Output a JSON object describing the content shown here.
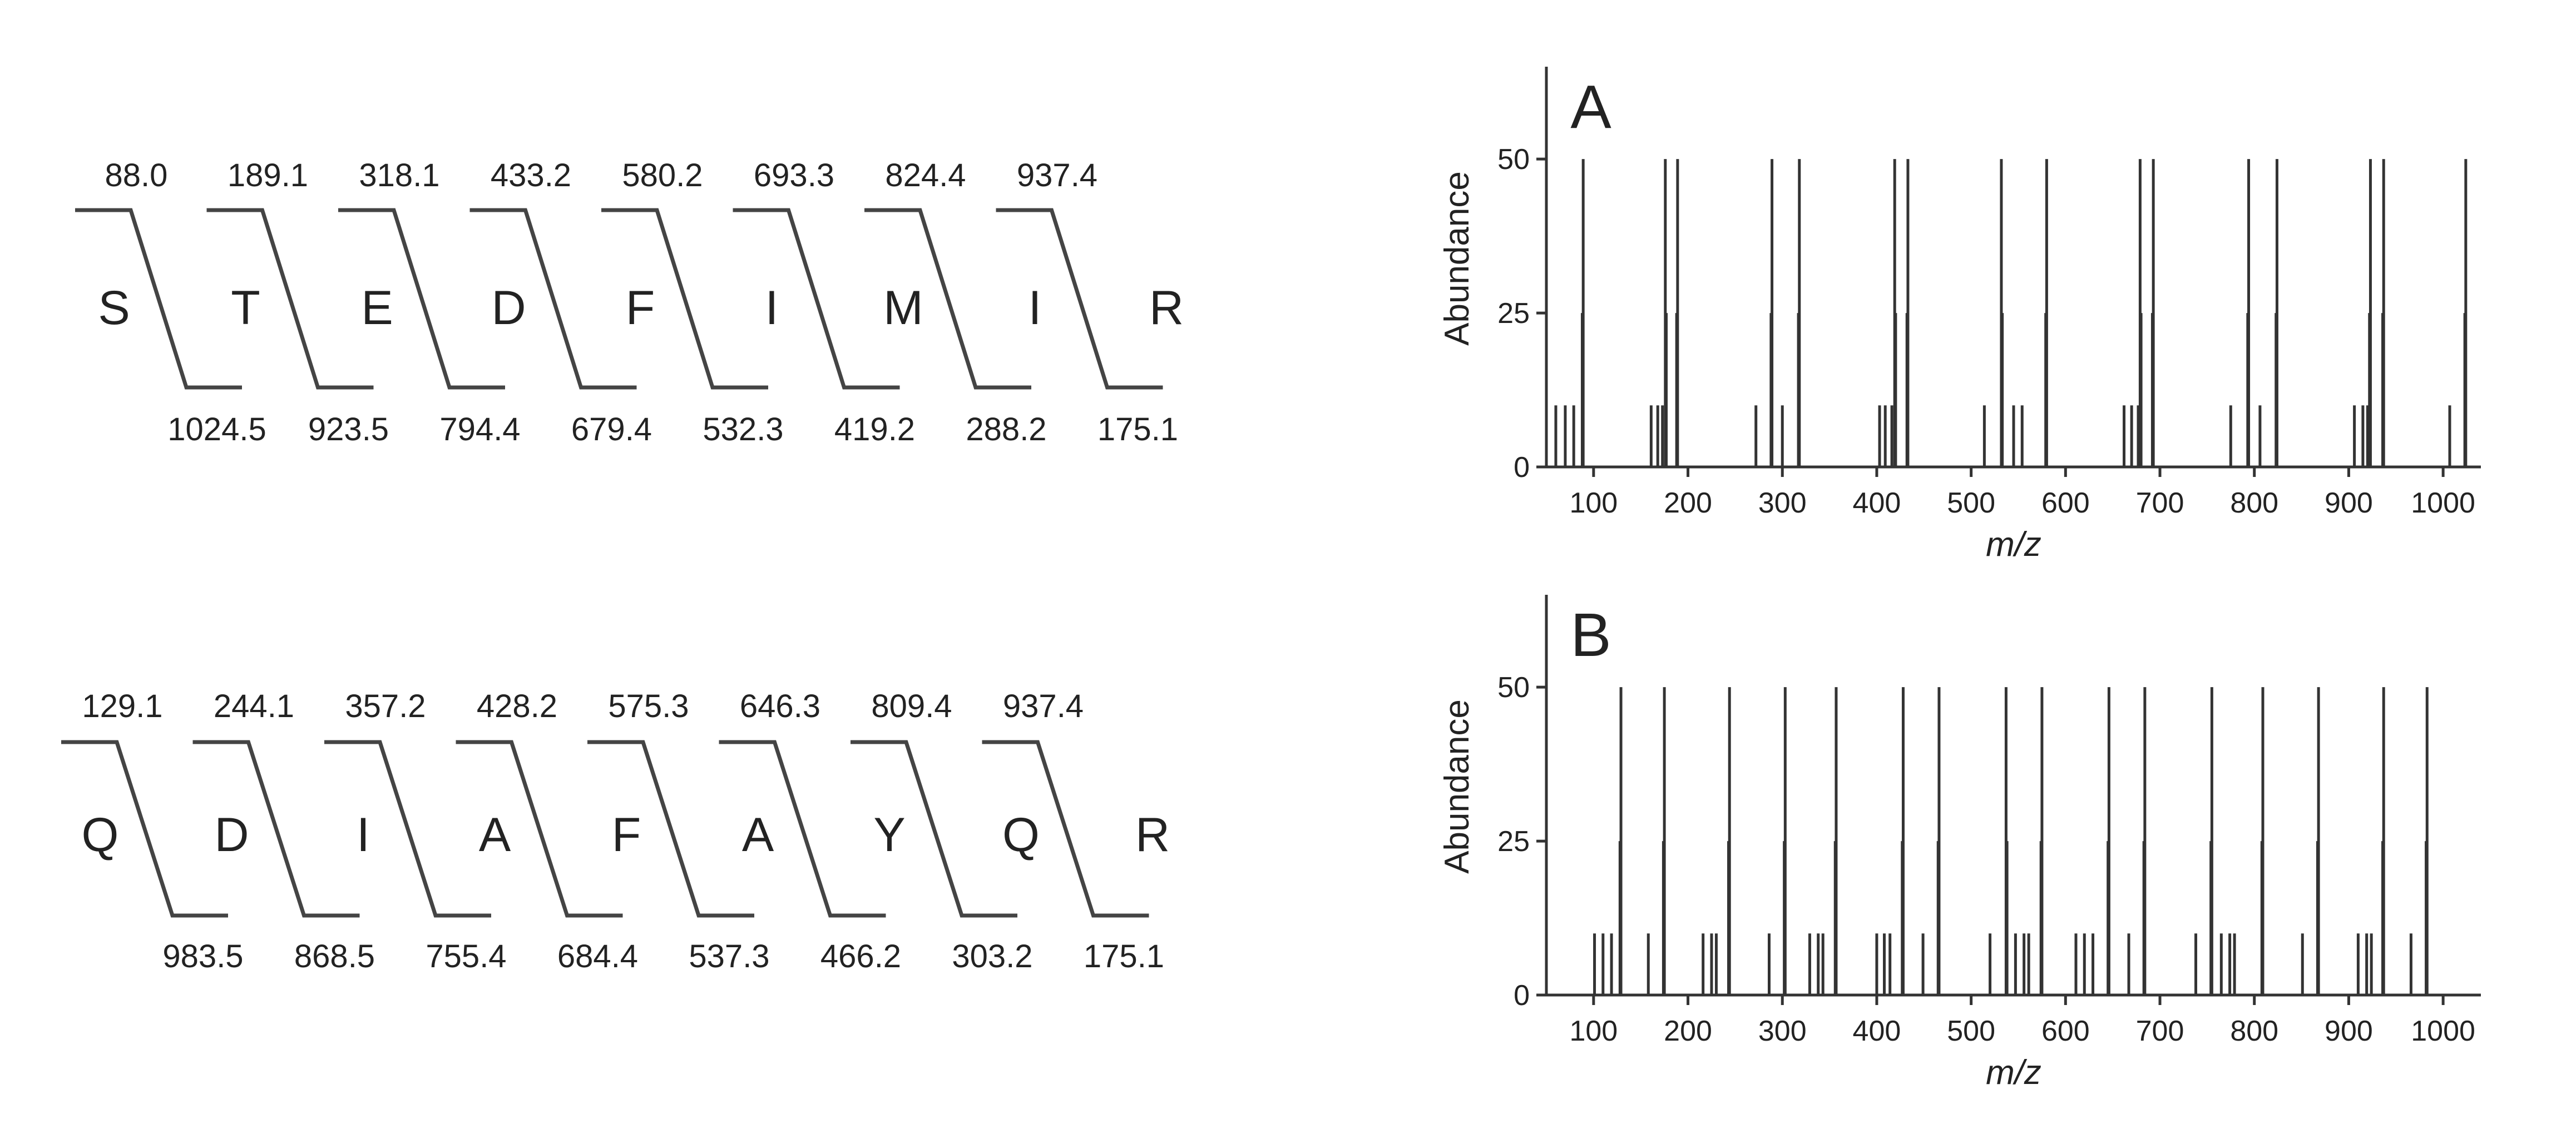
{
  "peptides": [
    {
      "residues": [
        "S",
        "T",
        "E",
        "D",
        "F",
        "I",
        "M",
        "I",
        "R"
      ],
      "top_masses": [
        "88.0",
        "189.1",
        "318.1",
        "433.2",
        "580.2",
        "693.3",
        "824.4",
        "937.4"
      ],
      "bottom_masses": [
        "1024.5",
        "923.5",
        "794.4",
        "679.4",
        "532.3",
        "419.2",
        "288.2",
        "175.1"
      ]
    },
    {
      "residues": [
        "Q",
        "D",
        "I",
        "A",
        "F",
        "A",
        "Y",
        "Q",
        "R"
      ],
      "top_masses": [
        "129.1",
        "244.1",
        "357.2",
        "428.2",
        "575.3",
        "646.3",
        "809.4",
        "937.4"
      ],
      "bottom_masses": [
        "983.5",
        "868.5",
        "755.4",
        "684.4",
        "537.3",
        "466.2",
        "303.2",
        "175.1"
      ]
    }
  ],
  "chart_data": [
    {
      "type": "bar",
      "panel_label": "A",
      "xlabel": "m/z",
      "ylabel": "Abundance",
      "xlim": [
        50,
        1040
      ],
      "ylim": [
        0,
        65
      ],
      "xticks": [
        100,
        200,
        300,
        400,
        500,
        600,
        700,
        800,
        900,
        1000
      ],
      "yticks": [
        0,
        25,
        50
      ],
      "peaks": [
        {
          "mz": 60,
          "abundance": 10
        },
        {
          "mz": 70,
          "abundance": 10
        },
        {
          "mz": 79,
          "abundance": 10
        },
        {
          "mz": 88,
          "abundance": 25
        },
        {
          "mz": 89,
          "abundance": 50
        },
        {
          "mz": 161,
          "abundance": 10
        },
        {
          "mz": 168,
          "abundance": 10
        },
        {
          "mz": 173,
          "abundance": 10
        },
        {
          "mz": 176,
          "abundance": 50
        },
        {
          "mz": 177,
          "abundance": 25
        },
        {
          "mz": 188,
          "abundance": 25
        },
        {
          "mz": 189,
          "abundance": 50
        },
        {
          "mz": 272,
          "abundance": 10
        },
        {
          "mz": 288,
          "abundance": 25
        },
        {
          "mz": 289,
          "abundance": 50
        },
        {
          "mz": 300,
          "abundance": 10
        },
        {
          "mz": 317,
          "abundance": 25
        },
        {
          "mz": 318,
          "abundance": 50
        },
        {
          "mz": 403,
          "abundance": 10
        },
        {
          "mz": 409,
          "abundance": 10
        },
        {
          "mz": 416,
          "abundance": 10
        },
        {
          "mz": 419,
          "abundance": 50
        },
        {
          "mz": 420,
          "abundance": 25
        },
        {
          "mz": 432,
          "abundance": 25
        },
        {
          "mz": 433,
          "abundance": 50
        },
        {
          "mz": 514,
          "abundance": 10
        },
        {
          "mz": 532,
          "abundance": 50
        },
        {
          "mz": 533,
          "abundance": 25
        },
        {
          "mz": 545,
          "abundance": 10
        },
        {
          "mz": 554,
          "abundance": 10
        },
        {
          "mz": 579,
          "abundance": 25
        },
        {
          "mz": 580,
          "abundance": 50
        },
        {
          "mz": 662,
          "abundance": 10
        },
        {
          "mz": 670,
          "abundance": 10
        },
        {
          "mz": 677,
          "abundance": 10
        },
        {
          "mz": 679,
          "abundance": 50
        },
        {
          "mz": 680,
          "abundance": 25
        },
        {
          "mz": 692,
          "abundance": 25
        },
        {
          "mz": 693,
          "abundance": 50
        },
        {
          "mz": 775,
          "abundance": 10
        },
        {
          "mz": 793,
          "abundance": 25
        },
        {
          "mz": 794,
          "abundance": 50
        },
        {
          "mz": 806,
          "abundance": 10
        },
        {
          "mz": 823,
          "abundance": 25
        },
        {
          "mz": 824,
          "abundance": 50
        },
        {
          "mz": 906,
          "abundance": 10
        },
        {
          "mz": 915,
          "abundance": 10
        },
        {
          "mz": 920,
          "abundance": 10
        },
        {
          "mz": 922,
          "abundance": 25
        },
        {
          "mz": 923,
          "abundance": 50
        },
        {
          "mz": 936,
          "abundance": 25
        },
        {
          "mz": 937,
          "abundance": 50
        },
        {
          "mz": 1007,
          "abundance": 10
        },
        {
          "mz": 1023,
          "abundance": 25
        },
        {
          "mz": 1024,
          "abundance": 50
        }
      ]
    },
    {
      "type": "bar",
      "panel_label": "B",
      "xlabel": "m/z",
      "ylabel": "Abundance",
      "xlim": [
        50,
        1040
      ],
      "ylim": [
        0,
        65
      ],
      "xticks": [
        100,
        200,
        300,
        400,
        500,
        600,
        700,
        800,
        900,
        1000
      ],
      "yticks": [
        0,
        25,
        50
      ],
      "peaks": [
        {
          "mz": 101,
          "abundance": 10
        },
        {
          "mz": 110,
          "abundance": 10
        },
        {
          "mz": 119,
          "abundance": 10
        },
        {
          "mz": 128,
          "abundance": 25
        },
        {
          "mz": 129,
          "abundance": 50
        },
        {
          "mz": 158,
          "abundance": 10
        },
        {
          "mz": 174,
          "abundance": 25
        },
        {
          "mz": 175,
          "abundance": 50
        },
        {
          "mz": 216,
          "abundance": 10
        },
        {
          "mz": 225,
          "abundance": 10
        },
        {
          "mz": 230,
          "abundance": 10
        },
        {
          "mz": 243,
          "abundance": 25
        },
        {
          "mz": 244,
          "abundance": 50
        },
        {
          "mz": 286,
          "abundance": 10
        },
        {
          "mz": 302,
          "abundance": 25
        },
        {
          "mz": 303,
          "abundance": 50
        },
        {
          "mz": 329,
          "abundance": 10
        },
        {
          "mz": 338,
          "abundance": 10
        },
        {
          "mz": 343,
          "abundance": 10
        },
        {
          "mz": 356,
          "abundance": 25
        },
        {
          "mz": 357,
          "abundance": 50
        },
        {
          "mz": 400,
          "abundance": 10
        },
        {
          "mz": 408,
          "abundance": 10
        },
        {
          "mz": 414,
          "abundance": 10
        },
        {
          "mz": 427,
          "abundance": 25
        },
        {
          "mz": 428,
          "abundance": 50
        },
        {
          "mz": 449,
          "abundance": 10
        },
        {
          "mz": 465,
          "abundance": 25
        },
        {
          "mz": 466,
          "abundance": 50
        },
        {
          "mz": 520,
          "abundance": 10
        },
        {
          "mz": 537,
          "abundance": 50
        },
        {
          "mz": 538,
          "abundance": 25
        },
        {
          "mz": 547,
          "abundance": 10
        },
        {
          "mz": 556,
          "abundance": 10
        },
        {
          "mz": 561,
          "abundance": 10
        },
        {
          "mz": 574,
          "abundance": 25
        },
        {
          "mz": 575,
          "abundance": 50
        },
        {
          "mz": 611,
          "abundance": 10
        },
        {
          "mz": 620,
          "abundance": 10
        },
        {
          "mz": 629,
          "abundance": 10
        },
        {
          "mz": 645,
          "abundance": 25
        },
        {
          "mz": 646,
          "abundance": 50
        },
        {
          "mz": 667,
          "abundance": 10
        },
        {
          "mz": 683,
          "abundance": 25
        },
        {
          "mz": 684,
          "abundance": 50
        },
        {
          "mz": 738,
          "abundance": 10
        },
        {
          "mz": 754,
          "abundance": 25
        },
        {
          "mz": 755,
          "abundance": 50
        },
        {
          "mz": 765,
          "abundance": 10
        },
        {
          "mz": 774,
          "abundance": 10
        },
        {
          "mz": 779,
          "abundance": 10
        },
        {
          "mz": 808,
          "abundance": 25
        },
        {
          "mz": 809,
          "abundance": 50
        },
        {
          "mz": 851,
          "abundance": 10
        },
        {
          "mz": 867,
          "abundance": 25
        },
        {
          "mz": 868,
          "abundance": 50
        },
        {
          "mz": 910,
          "abundance": 10
        },
        {
          "mz": 919,
          "abundance": 10
        },
        {
          "mz": 924,
          "abundance": 10
        },
        {
          "mz": 936,
          "abundance": 25
        },
        {
          "mz": 937,
          "abundance": 50
        },
        {
          "mz": 966,
          "abundance": 10
        },
        {
          "mz": 982,
          "abundance": 25
        },
        {
          "mz": 983,
          "abundance": 50
        }
      ]
    }
  ]
}
